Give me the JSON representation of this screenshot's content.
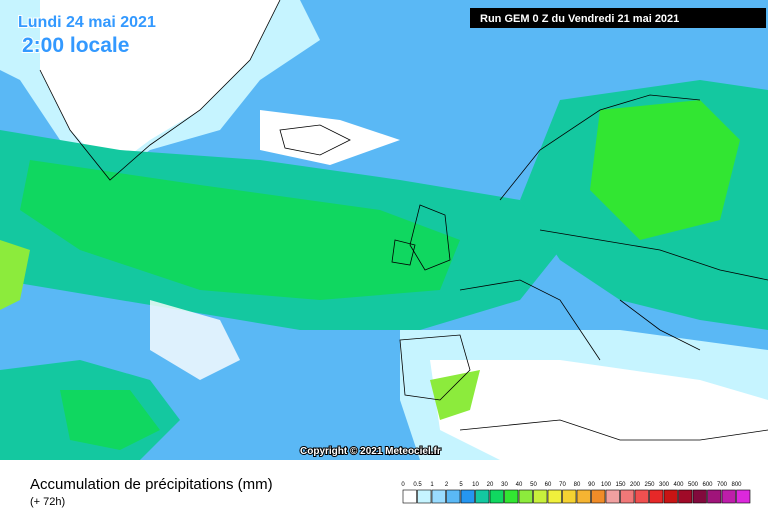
{
  "header": {
    "date": "Lundi 24 mai 2021",
    "time": "2:00 locale",
    "run": "Run GEM 0 Z du Vendredi 21 mai 2021"
  },
  "copyright": "Copyright © 2021 Meteociel.fr",
  "footer": {
    "title": "Accumulation de précipitations (mm)",
    "subtitle": "(+ 72h)"
  },
  "legend": [
    {
      "label": 0,
      "color": "#ffffff"
    },
    {
      "label": 0.5,
      "color": "#c6f4ff"
    },
    {
      "label": 1,
      "color": "#9adcff"
    },
    {
      "label": 2,
      "color": "#5ab8f5"
    },
    {
      "label": 5,
      "color": "#2596f0"
    },
    {
      "label": 10,
      "color": "#14c8a0"
    },
    {
      "label": 20,
      "color": "#10d760"
    },
    {
      "label": 30,
      "color": "#32e632"
    },
    {
      "label": 40,
      "color": "#8ceb3c"
    },
    {
      "label": 50,
      "color": "#c8f03c"
    },
    {
      "label": 60,
      "color": "#f0f03c"
    },
    {
      "label": 70,
      "color": "#f5d232"
    },
    {
      "label": 80,
      "color": "#f5b432"
    },
    {
      "label": 90,
      "color": "#f08c28"
    },
    {
      "label": 100,
      "color": "#f0a0a0"
    },
    {
      "label": 150,
      "color": "#f07878"
    },
    {
      "label": 200,
      "color": "#f05050"
    },
    {
      "label": 250,
      "color": "#e62828"
    },
    {
      "label": 300,
      "color": "#c81414"
    },
    {
      "label": 400,
      "color": "#a00a28"
    },
    {
      "label": 500,
      "color": "#820a3c"
    },
    {
      "label": 600,
      "color": "#a0147a"
    },
    {
      "label": 700,
      "color": "#be1eaa"
    },
    {
      "label": 800,
      "color": "#dc28dc"
    }
  ]
}
